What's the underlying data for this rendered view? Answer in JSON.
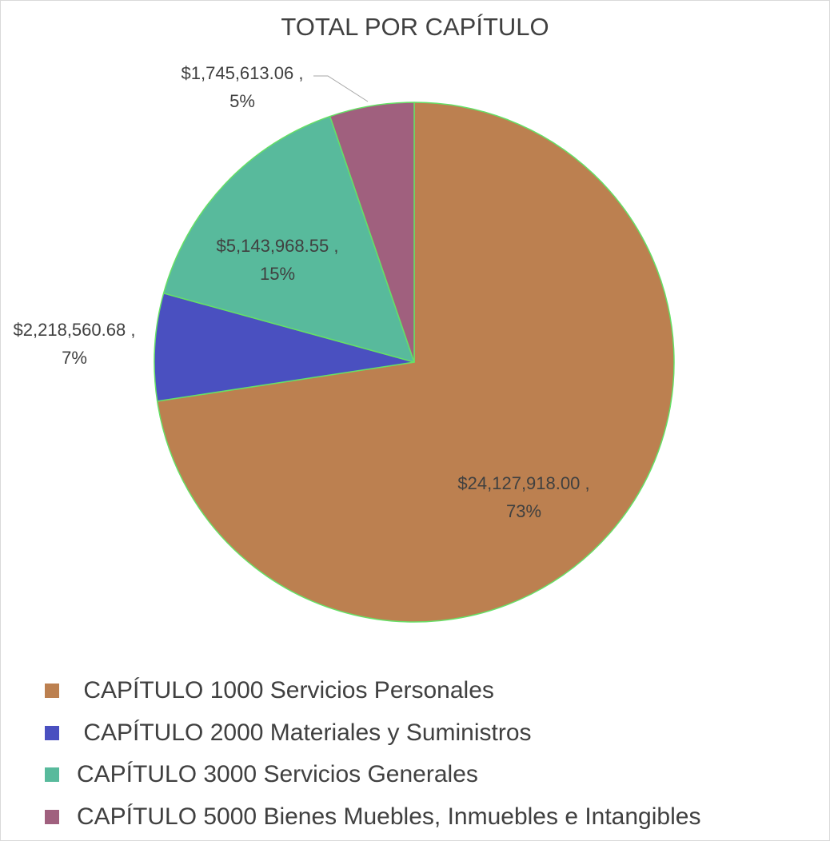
{
  "chart_data": {
    "type": "pie",
    "title": "TOTAL POR CAPÍTULO",
    "slices": [
      {
        "name": " CAPÍTULO 1000 Servicios Personales",
        "value": 24127918.0,
        "label_value": "$24,127,918.00 ,",
        "label_percent": "73%",
        "color": "#BC8050"
      },
      {
        "name": " CAPÍTULO 2000 Materiales y Suministros",
        "value": 2218560.68,
        "label_value": "$2,218,560.68 ,",
        "label_percent": "7%",
        "color": "#4A50C0"
      },
      {
        "name": "CAPÍTULO 3000 Servicios Generales",
        "value": 5143968.55,
        "label_value": "$5,143,968.55 ,",
        "label_percent": "15%",
        "color": "#58BA9C"
      },
      {
        "name": "CAPÍTULO 5000 Bienes Muebles, Inmuebles e Intangibles",
        "value": 1745613.06,
        "label_value": "$1,745,613.06 ,",
        "label_percent": "5%",
        "color": "#A0607E"
      }
    ],
    "slice_border_color": "#66E066",
    "leader_line_color": "#A6A6A6",
    "legend_position": "bottom-left"
  }
}
